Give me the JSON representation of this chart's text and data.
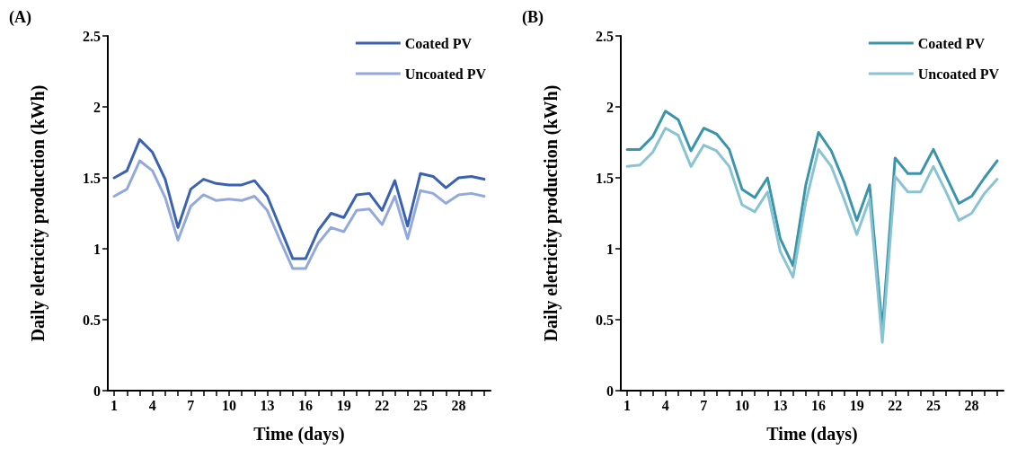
{
  "chart_data": [
    {
      "type": "line",
      "title": "(A)",
      "xlabel": "Time (days)",
      "ylabel": "Daily eletricity production (kWh)",
      "legend": "top right",
      "grid": false,
      "marker": "none",
      "line_style": "solid",
      "categories": [
        "1",
        null,
        null,
        "4",
        null,
        null,
        "7",
        null,
        null,
        "10",
        null,
        null,
        "13",
        null,
        null,
        "16",
        null,
        null,
        "19",
        null,
        null,
        "22",
        null,
        null,
        "25",
        null,
        null,
        "28",
        null,
        null
      ],
      "ylim": [
        0,
        2.5
      ],
      "yticks": [
        0,
        0.5,
        1,
        1.5,
        2,
        2.5
      ],
      "series": [
        {
          "name": "Coated PV",
          "color": "#3a62b0",
          "values": [
            1.5,
            1.55,
            1.77,
            1.68,
            1.49,
            1.15,
            1.42,
            1.49,
            1.46,
            1.45,
            1.45,
            1.48,
            1.37,
            1.15,
            0.93,
            0.93,
            1.13,
            1.25,
            1.22,
            1.38,
            1.39,
            1.27,
            1.48,
            1.16,
            1.53,
            1.51,
            1.43,
            1.5,
            1.51,
            1.49
          ]
        },
        {
          "name": "Uncoated PV",
          "color": "#93a8db",
          "values": [
            1.37,
            1.42,
            1.62,
            1.55,
            1.36,
            1.06,
            1.3,
            1.38,
            1.34,
            1.35,
            1.34,
            1.37,
            1.27,
            1.06,
            0.86,
            0.86,
            1.04,
            1.15,
            1.12,
            1.27,
            1.28,
            1.17,
            1.37,
            1.07,
            1.41,
            1.39,
            1.32,
            1.38,
            1.39,
            1.37
          ]
        }
      ]
    },
    {
      "type": "line",
      "title": "(B)",
      "xlabel": "Time (days)",
      "ylabel": "Daily eletricity production (kWh)",
      "legend": "top right",
      "grid": false,
      "marker": "none",
      "line_style": "solid",
      "categories": [
        "1",
        null,
        null,
        "4",
        null,
        null,
        "7",
        null,
        null,
        "10",
        null,
        null,
        "13",
        null,
        null,
        "16",
        null,
        null,
        "19",
        null,
        null,
        "22",
        null,
        null,
        "25",
        null,
        null,
        "28",
        null,
        null
      ],
      "ylim": [
        0,
        2.5
      ],
      "yticks": [
        0,
        0.5,
        1,
        1.5,
        2,
        2.5
      ],
      "series": [
        {
          "name": "Coated PV",
          "color": "#3a95aa",
          "values": [
            1.7,
            1.7,
            1.79,
            1.97,
            1.91,
            1.69,
            1.85,
            1.81,
            1.7,
            1.42,
            1.36,
            1.5,
            1.07,
            0.88,
            1.45,
            1.82,
            1.69,
            1.47,
            1.2,
            1.45,
            0.43,
            1.64,
            1.53,
            1.53,
            1.7,
            1.51,
            1.32,
            1.37,
            1.5,
            1.62
          ]
        },
        {
          "name": "Uncoated PV",
          "color": "#8ac4d3",
          "values": [
            1.58,
            1.59,
            1.68,
            1.85,
            1.8,
            1.58,
            1.73,
            1.69,
            1.58,
            1.31,
            1.26,
            1.4,
            0.98,
            0.8,
            1.33,
            1.7,
            1.58,
            1.35,
            1.1,
            1.35,
            0.34,
            1.51,
            1.4,
            1.4,
            1.58,
            1.4,
            1.2,
            1.25,
            1.39,
            1.49
          ]
        }
      ]
    }
  ]
}
